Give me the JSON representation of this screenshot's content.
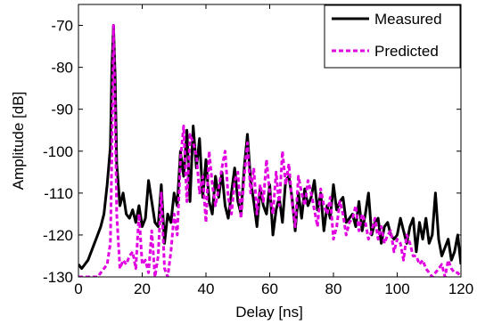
{
  "chart_data": {
    "type": "line",
    "xlabel": "Delay [ns]",
    "ylabel": "Amplitude [dB]",
    "xlim": [
      0,
      120
    ],
    "ylim": [
      -130,
      -65
    ],
    "xticks": [
      0,
      20,
      40,
      60,
      80,
      100,
      120
    ],
    "yticks": [
      -130,
      -120,
      -110,
      -100,
      -90,
      -80,
      -70
    ],
    "xtick_labels": [
      "0",
      "20",
      "40",
      "60",
      "80",
      "100",
      "120"
    ],
    "ytick_labels": [
      "-130",
      "-120",
      "-110",
      "-100",
      "-90",
      "-80",
      "-70"
    ],
    "grid": false,
    "legend_position": "top-right",
    "series": [
      {
        "name": "Measured",
        "color": "#000000",
        "style": "solid",
        "x": [
          0,
          1,
          2,
          3,
          4,
          5,
          6,
          7,
          8,
          9,
          10,
          10.5,
          11,
          11.5,
          12,
          13,
          14,
          15,
          16,
          17,
          18,
          19,
          20,
          21,
          22,
          23,
          24,
          25,
          26,
          27,
          28,
          29,
          30,
          31,
          32,
          33,
          34,
          35,
          36,
          37,
          38,
          39,
          40,
          41,
          42,
          43,
          44,
          45,
          46,
          47,
          48,
          49,
          50,
          51,
          52,
          53,
          54,
          55,
          56,
          57,
          58,
          59,
          60,
          61,
          62,
          63,
          64,
          65,
          66,
          67,
          68,
          69,
          70,
          71,
          72,
          73,
          74,
          75,
          76,
          77,
          78,
          79,
          80,
          81,
          82,
          83,
          84,
          85,
          86,
          87,
          88,
          89,
          90,
          91,
          92,
          93,
          94,
          95,
          96,
          97,
          98,
          99,
          100,
          101,
          102,
          103,
          104,
          105,
          106,
          107,
          108,
          109,
          110,
          111,
          112,
          113,
          114,
          115,
          116,
          117,
          118,
          119,
          120
        ],
        "values": [
          -127,
          -128,
          -127,
          -126,
          -124,
          -122,
          -120,
          -118,
          -115,
          -108,
          -99,
          -80,
          -70,
          -82,
          -103,
          -113,
          -110,
          -115,
          -116,
          -114,
          -117,
          -113,
          -118,
          -116,
          -107,
          -112,
          -117,
          -118,
          -108,
          -122,
          -115,
          -117,
          -110,
          -113,
          -100,
          -106,
          -95,
          -112,
          -94,
          -104,
          -97,
          -111,
          -102,
          -112,
          -115,
          -106,
          -111,
          -105,
          -113,
          -116,
          -110,
          -104,
          -112,
          -115,
          -104,
          -96,
          -107,
          -112,
          -118,
          -109,
          -113,
          -115,
          -108,
          -120,
          -114,
          -111,
          -117,
          -107,
          -106,
          -111,
          -119,
          -110,
          -116,
          -109,
          -113,
          -111,
          -107,
          -114,
          -110,
          -119,
          -113,
          -116,
          -108,
          -114,
          -112,
          -111,
          -117,
          -116,
          -115,
          -118,
          -112,
          -119,
          -115,
          -110,
          -120,
          -117,
          -116,
          -122,
          -118,
          -117,
          -120,
          -121,
          -120,
          -116,
          -119,
          -122,
          -118,
          -116,
          -124,
          -117,
          -121,
          -116,
          -122,
          -120,
          -110,
          -121,
          -125,
          -123,
          -121,
          -126,
          -124,
          -120,
          -127
        ]
      },
      {
        "name": "Predicted",
        "color": "#e100e1",
        "style": "dashed",
        "x": [
          0,
          1,
          2,
          3,
          4,
          5,
          6,
          7,
          8,
          9,
          10,
          10.5,
          11,
          11.5,
          12,
          13,
          14,
          15,
          16,
          17,
          18,
          19,
          20,
          21,
          22,
          23,
          24,
          25,
          26,
          27,
          28,
          29,
          30,
          31,
          32,
          33,
          34,
          35,
          36,
          37,
          38,
          39,
          40,
          41,
          42,
          43,
          44,
          45,
          46,
          47,
          48,
          49,
          50,
          51,
          52,
          53,
          54,
          55,
          56,
          57,
          58,
          59,
          60,
          61,
          62,
          63,
          64,
          65,
          66,
          67,
          68,
          69,
          70,
          71,
          72,
          73,
          74,
          75,
          76,
          77,
          78,
          79,
          80,
          81,
          82,
          83,
          84,
          85,
          86,
          87,
          88,
          89,
          90,
          91,
          92,
          93,
          94,
          95,
          96,
          97,
          98,
          99,
          100,
          101,
          102,
          103,
          104,
          105,
          106,
          107,
          108,
          109,
          110,
          111,
          112,
          113,
          114,
          115,
          116,
          117,
          118,
          119,
          120
        ],
        "values": [
          -130,
          -130,
          -130,
          -130,
          -130,
          -130,
          -130,
          -129,
          -128,
          -127,
          -122,
          -100,
          -70,
          -90,
          -115,
          -128,
          -126,
          -127,
          -125,
          -124,
          -128,
          -115,
          -127,
          -126,
          -129,
          -119,
          -130,
          -125,
          -110,
          -128,
          -130,
          -124,
          -115,
          -120,
          -102,
          -94,
          -112,
          -96,
          -98,
          -101,
          -110,
          -106,
          -117,
          -100,
          -108,
          -113,
          -109,
          -104,
          -100,
          -111,
          -115,
          -107,
          -105,
          -116,
          -106,
          -98,
          -110,
          -104,
          -115,
          -108,
          -112,
          -102,
          -110,
          -115,
          -105,
          -113,
          -100,
          -108,
          -103,
          -112,
          -118,
          -106,
          -110,
          -113,
          -107,
          -110,
          -114,
          -118,
          -109,
          -113,
          -115,
          -111,
          -121,
          -118,
          -112,
          -115,
          -120,
          -117,
          -116,
          -113,
          -119,
          -115,
          -117,
          -121,
          -119,
          -116,
          -121,
          -118,
          -122,
          -120,
          -119,
          -124,
          -121,
          -122,
          -126,
          -120,
          -122,
          -125,
          -125,
          -127,
          -126,
          -128,
          -129,
          -130,
          -129,
          -128,
          -127,
          -130,
          -126,
          -128,
          -129,
          -129,
          -130
        ]
      }
    ]
  }
}
